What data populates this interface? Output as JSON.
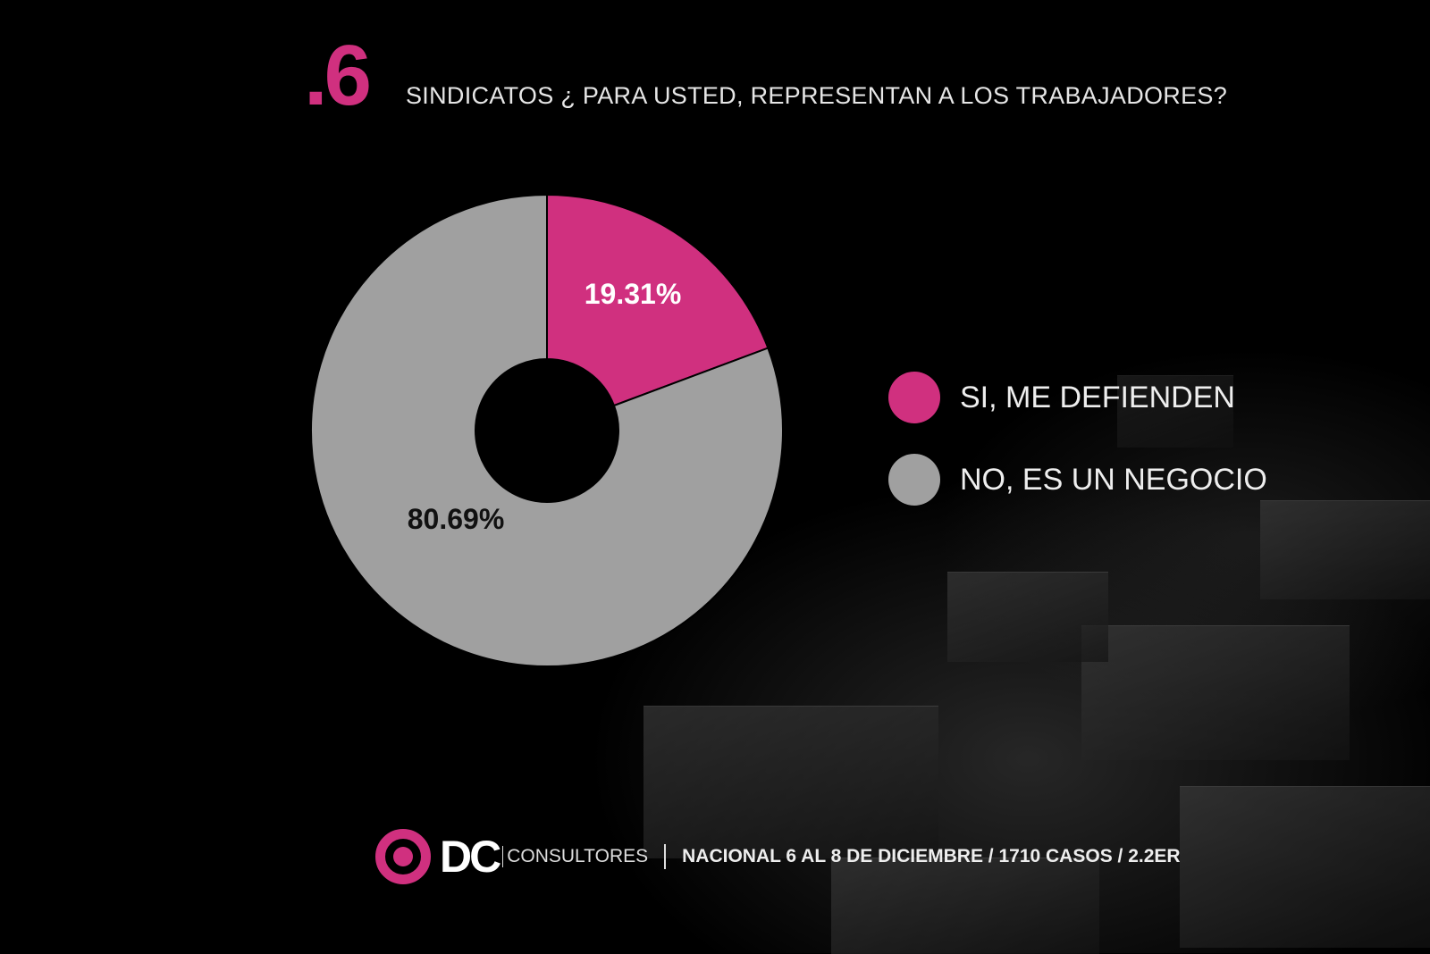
{
  "question": {
    "number": ".6",
    "text": "SINDICATOS ¿ PARA USTED, REPRESENTAN A LOS TRABAJADORES?"
  },
  "chart_data": {
    "type": "pie",
    "title": "SINDICATOS ¿ PARA USTED, REPRESENTAN A LOS TRABAJADORES?",
    "donut": true,
    "legend_position": "right",
    "slices": [
      {
        "name": "SI, ME DEFIENDEN",
        "value": 19.31,
        "label": "19.31%",
        "color": "#d0307f",
        "label_color": "#ffffff"
      },
      {
        "name": "NO, ES UN NEGOCIO",
        "value": 80.69,
        "label": "80.69%",
        "color": "#a0a0a0",
        "label_color": "#111111"
      }
    ]
  },
  "footer": {
    "logo_text": "DC",
    "logo_sub": "CONSULTORES",
    "info": "NACIONAL 6 AL 8 DE DICIEMBRE / 1710 CASOS / 2.2ER"
  }
}
